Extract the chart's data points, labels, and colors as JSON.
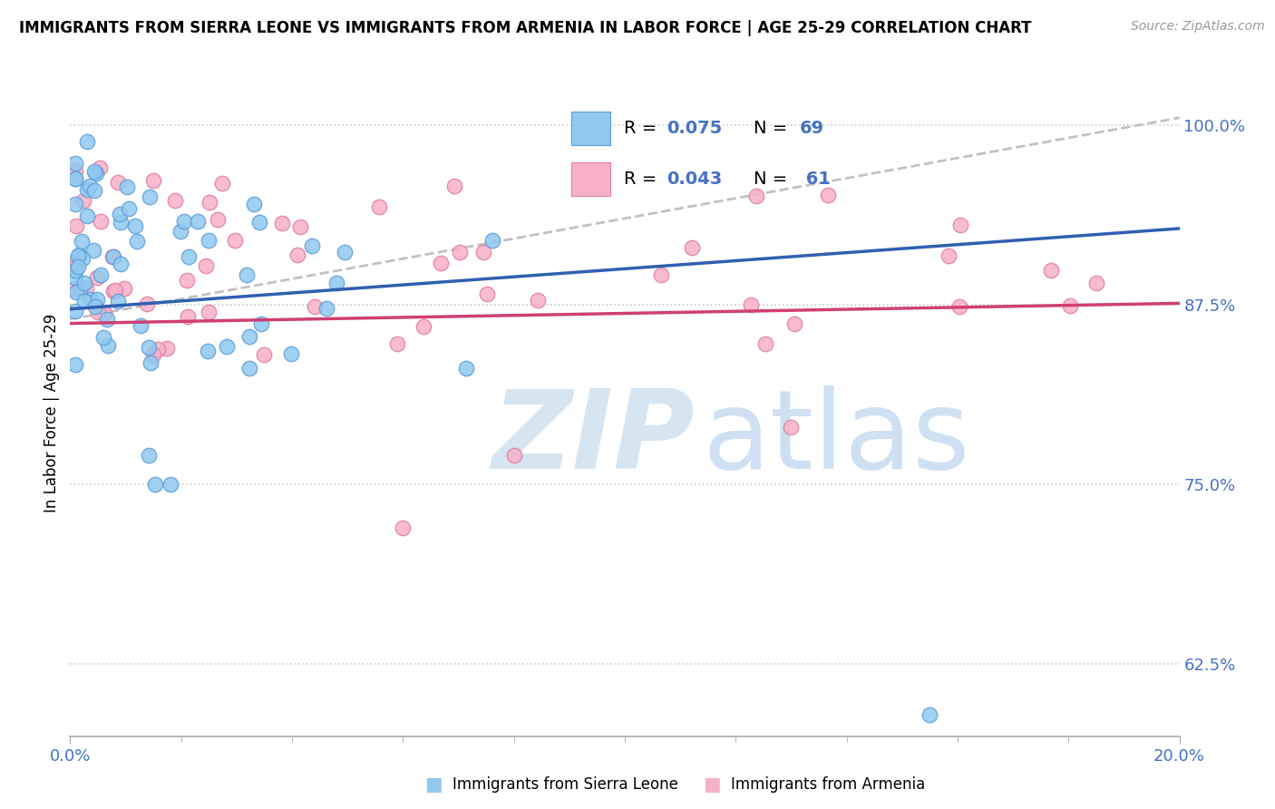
{
  "title": "IMMIGRANTS FROM SIERRA LEONE VS IMMIGRANTS FROM ARMENIA IN LABOR FORCE | AGE 25-29 CORRELATION CHART",
  "source": "Source: ZipAtlas.com",
  "ylabel": "In Labor Force | Age 25-29",
  "xlim": [
    0.0,
    0.2
  ],
  "ylim": [
    0.575,
    1.025
  ],
  "ytick_vals": [
    0.625,
    0.75,
    0.875,
    1.0
  ],
  "ytick_labels": [
    "62.5%",
    "75.0%",
    "87.5%",
    "100.0%"
  ],
  "xtick_vals": [
    0.0,
    0.2
  ],
  "xtick_labels": [
    "0.0%",
    "20.0%"
  ],
  "blue_color": "#90C8F0",
  "blue_edge": "#60A0D8",
  "pink_color": "#F8B0C8",
  "pink_edge": "#E080A0",
  "trend_blue_color": "#3060B0",
  "trend_pink_color": "#D04070",
  "trend_dashed_color": "#BBBBBB",
  "legend_r_blue": "0.075",
  "legend_n_blue": "69",
  "legend_r_pink": "0.043",
  "legend_n_pink": "61",
  "watermark_color": "#C8DFF0",
  "tick_color": "#4472C4",
  "grid_color": "#CCCCCC",
  "axis_color": "#AAAAAA",
  "title_fontsize": 12,
  "label_fontsize": 12,
  "tick_fontsize": 13
}
